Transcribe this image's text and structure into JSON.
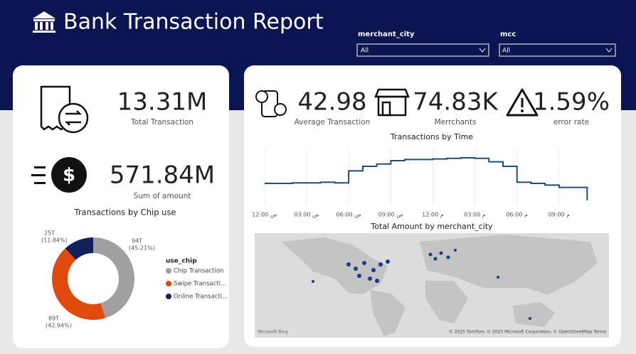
{
  "header": {
    "title": "Bank Transaction Report"
  },
  "filters": [
    {
      "label": "merchant_city",
      "value": "All"
    },
    {
      "label": "mcc",
      "value": "All"
    }
  ],
  "kpis": [
    {
      "value": "13.31M",
      "label": "Total Transaction"
    },
    {
      "value": "571.84M",
      "label": "Sum of amount"
    },
    {
      "value": "42.98",
      "label": "Average Transaction"
    },
    {
      "value": "74.83K",
      "label": "Merrchants"
    },
    {
      "value": "1.59%",
      "label": "error rate"
    }
  ],
  "chart_data": [
    {
      "type": "line",
      "title": "Transactions by Time",
      "color": "#1f4e79",
      "x": [
        0,
        1,
        2,
        3,
        4,
        5,
        6,
        7,
        8,
        9,
        10,
        11,
        12,
        13,
        14,
        15,
        16,
        17,
        18,
        19,
        20,
        21,
        22,
        23
      ],
      "values": [
        40,
        40,
        41,
        41,
        42,
        41,
        62,
        70,
        74,
        80,
        82,
        82,
        83,
        84,
        85,
        84,
        78,
        70,
        42,
        40,
        37,
        33,
        33,
        10
      ],
      "xlim": [
        -0.5,
        24
      ],
      "ylim": [
        0,
        100
      ],
      "xticks": [
        {
          "value": 0,
          "label": "12:00 ص"
        },
        {
          "value": 3,
          "label": "03:00 ص"
        },
        {
          "value": 6,
          "label": "06:00 ص"
        },
        {
          "value": 9,
          "label": "09:00 ص"
        },
        {
          "value": 12,
          "label": "12:00 م"
        },
        {
          "value": 15,
          "label": "03:00 م"
        },
        {
          "value": 18,
          "label": "06:00 م"
        },
        {
          "value": 21,
          "label": "09:00 م"
        }
      ],
      "grid": true
    },
    {
      "type": "donut",
      "title": "Transactions by Chip use",
      "legend_title": "use_chip",
      "categories": [
        "Chip Transaction",
        "Swipe Transacti...",
        "Online Transacti..."
      ],
      "values": [
        45.21,
        42.94,
        11.84
      ],
      "count_labels": [
        "94T",
        "89T",
        "25T"
      ],
      "value_labels": [
        "(45.21%)",
        "(42.94%)",
        "(11.84%)"
      ],
      "colors": [
        "#a0a0a0",
        "#e04a0c",
        "#10205a"
      ]
    }
  ],
  "map": {
    "title": "Total Amount by merchant_city",
    "brand": "Microsoft Bing",
    "attribution": "© 2025 TomTom, © 2025 Microsoft Corporation, © OpenStreetMap Terms"
  }
}
